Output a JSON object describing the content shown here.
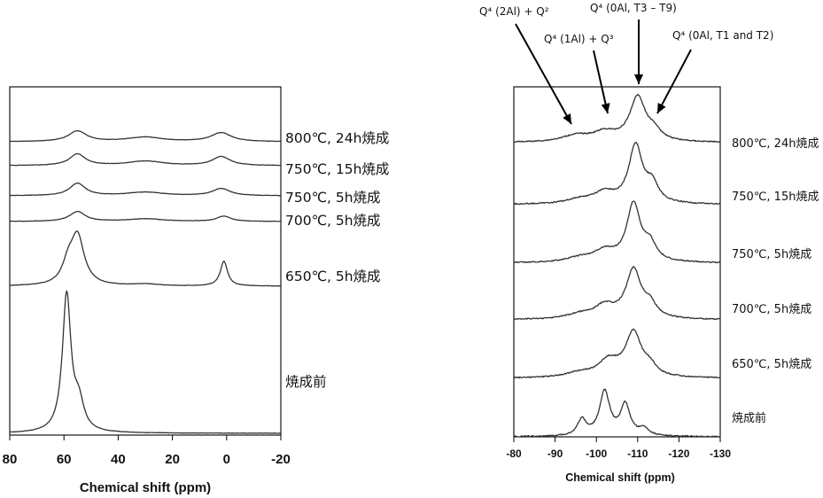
{
  "chart_data": [
    {
      "type": "line",
      "xlabel": "Chemical shift (ppm)",
      "xlim": [
        80,
        -20
      ],
      "xticks": [
        80,
        60,
        40,
        20,
        0,
        -20
      ],
      "x_reversed": true,
      "y_axis_visible": false,
      "grid": false,
      "series": [
        {
          "name": "800℃, 24h焼成",
          "baseline": 0,
          "peaks": [
            {
              "x": 55,
              "height": 0.12,
              "width": 4.0
            },
            {
              "x": 30,
              "height": 0.05,
              "width": 8.0
            },
            {
              "x": 2,
              "height": 0.1,
              "width": 4.5
            }
          ]
        },
        {
          "name": "750℃, 15h焼成",
          "baseline": 0,
          "peaks": [
            {
              "x": 55,
              "height": 0.13,
              "width": 3.5
            },
            {
              "x": 30,
              "height": 0.05,
              "width": 8.0
            },
            {
              "x": 2,
              "height": 0.1,
              "width": 4.0
            }
          ]
        },
        {
          "name": "750℃, 5h焼成",
          "baseline": 0,
          "peaks": [
            {
              "x": 55,
              "height": 0.14,
              "width": 3.5
            },
            {
              "x": 30,
              "height": 0.04,
              "width": 8.0
            },
            {
              "x": 2,
              "height": 0.08,
              "width": 4.0
            }
          ]
        },
        {
          "name": "700℃, 5h焼成",
          "baseline": 0,
          "peaks": [
            {
              "x": 55,
              "height": 0.11,
              "width": 3.5
            },
            {
              "x": 30,
              "height": 0.03,
              "width": 8.0
            },
            {
              "x": 1,
              "height": 0.06,
              "width": 3.0
            }
          ]
        },
        {
          "name": "650℃, 5h焼成",
          "baseline": 0,
          "peaks": [
            {
              "x": 55,
              "height": 0.55,
              "width": 3.0
            },
            {
              "x": 58.5,
              "height": 0.2,
              "width": 2.5
            },
            {
              "x": 30,
              "height": 0.02,
              "width": 6.0
            },
            {
              "x": 1,
              "height": 0.28,
              "width": 1.6
            }
          ]
        },
        {
          "name": "焼成前",
          "baseline": 0,
          "peaks": [
            {
              "x": 59,
              "height": 1.55,
              "width": 1.9
            },
            {
              "x": 54.5,
              "height": 0.3,
              "width": 2.2
            }
          ]
        }
      ]
    },
    {
      "type": "line",
      "xlabel": "Chemical shift (ppm)",
      "xlim": [
        -80,
        -130
      ],
      "xticks": [
        -80,
        -90,
        -100,
        -110,
        -120,
        -130
      ],
      "x_reversed": true,
      "y_axis_visible": false,
      "grid": false,
      "annotations": [
        {
          "label": "Q⁴ (2Al) + Q²",
          "x": -92
        },
        {
          "label": "Q⁴ (1Al) + Q³",
          "x": -101
        },
        {
          "label": "Q⁴ (0Al, T3 – T9)",
          "x": -110
        },
        {
          "label": "Q⁴ (0Al, T1 and T2)",
          "x": -113
        }
      ],
      "series": [
        {
          "name": "800℃, 24h焼成",
          "peaks": [
            {
              "x": -95,
              "height": 0.07,
              "width": 4.0
            },
            {
              "x": -102,
              "height": 0.1,
              "width": 3.5
            },
            {
              "x": -110,
              "height": 0.5,
              "width": 2.3
            },
            {
              "x": -114,
              "height": 0.1,
              "width": 2.0
            }
          ]
        },
        {
          "name": "750℃, 15h焼成",
          "peaks": [
            {
              "x": -96,
              "height": 0.05,
              "width": 4.0
            },
            {
              "x": -102,
              "height": 0.12,
              "width": 3.0
            },
            {
              "x": -109.5,
              "height": 0.65,
              "width": 2.0
            },
            {
              "x": -113.5,
              "height": 0.2,
              "width": 1.8
            }
          ]
        },
        {
          "name": "750℃, 5h焼成",
          "peaks": [
            {
              "x": -96,
              "height": 0.05,
              "width": 4.0
            },
            {
              "x": -102,
              "height": 0.12,
              "width": 3.0
            },
            {
              "x": -109,
              "height": 0.65,
              "width": 2.0
            },
            {
              "x": -113,
              "height": 0.18,
              "width": 1.8
            }
          ]
        },
        {
          "name": "700℃, 5h焼成",
          "peaks": [
            {
              "x": -96,
              "height": 0.05,
              "width": 4.0
            },
            {
              "x": -102,
              "height": 0.14,
              "width": 3.0
            },
            {
              "x": -109,
              "height": 0.55,
              "width": 2.2
            },
            {
              "x": -113,
              "height": 0.14,
              "width": 1.8
            }
          ]
        },
        {
          "name": "650℃, 5h焼成",
          "peaks": [
            {
              "x": -96,
              "height": 0.05,
              "width": 4.0
            },
            {
              "x": -103,
              "height": 0.18,
              "width": 3.0
            },
            {
              "x": -109,
              "height": 0.5,
              "width": 2.3
            },
            {
              "x": -113,
              "height": 0.1,
              "width": 1.8
            }
          ]
        },
        {
          "name": "焼成前",
          "peaks": [
            {
              "x": -96.5,
              "height": 0.18,
              "width": 1.3
            },
            {
              "x": -102,
              "height": 0.5,
              "width": 1.5
            },
            {
              "x": -107,
              "height": 0.35,
              "width": 1.4
            },
            {
              "x": -111.5,
              "height": 0.08,
              "width": 1.5
            }
          ]
        }
      ]
    }
  ]
}
